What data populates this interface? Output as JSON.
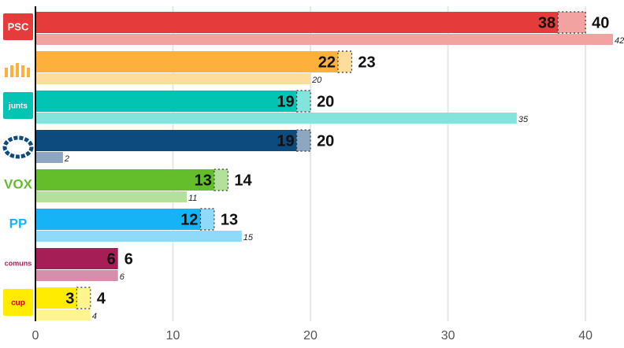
{
  "chart_data": {
    "type": "bar",
    "orientation": "horizontal",
    "categories": [
      "PSC",
      null,
      "junts",
      null,
      "VOX",
      "PP",
      "comuns",
      "cup"
    ],
    "colors": [
      "#e53b3b",
      "#fdb03c",
      "#02c4b3",
      "#0d4a7d",
      "#64bd2b",
      "#16b4f6",
      "#a51e55",
      "#ffec00"
    ],
    "light_colors": [
      "#f3a2a2",
      "#fedc9c",
      "#84e3da",
      "#8da7c2",
      "#b3e09a",
      "#8fdafb",
      "#d58eab",
      "#fff590"
    ],
    "series": [
      {
        "values": [
          38,
          22,
          19,
          19,
          13,
          12,
          6,
          3
        ]
      },
      {
        "values": [
          40,
          23,
          20,
          20,
          14,
          13,
          6,
          4
        ]
      },
      {
        "values": [
          42,
          20,
          35,
          2,
          11,
          15,
          6,
          4
        ]
      }
    ],
    "xlim": [
      0,
      42.8
    ],
    "xticks": [
      0,
      10,
      20,
      30,
      40
    ],
    "grid": true
  }
}
